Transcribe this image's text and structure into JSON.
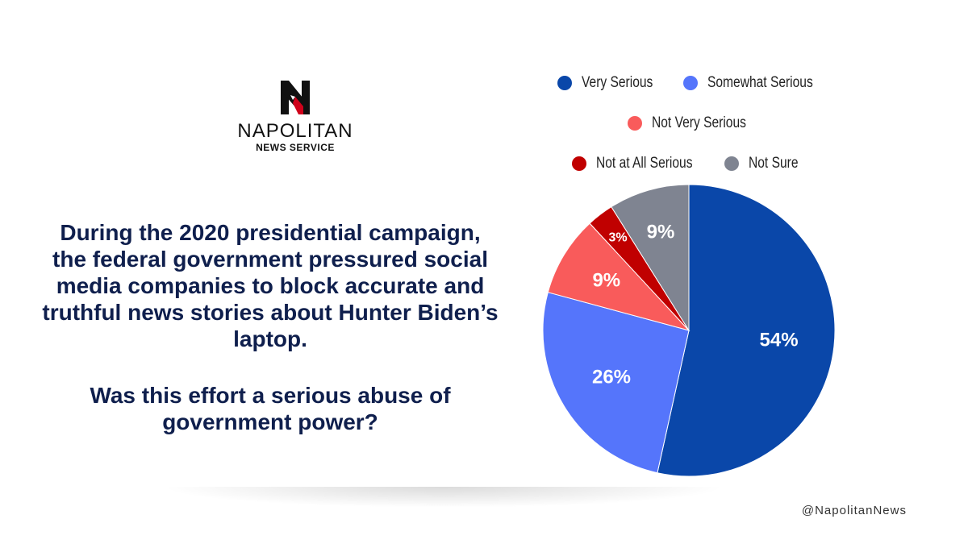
{
  "logo": {
    "name": "NAPOLITAN",
    "subtitle": "NEWS SERVICE"
  },
  "question": {
    "statement": "During the 2020 presidential campaign, the federal government pressured social media companies to block accurate and truthful news stories about Hunter Biden’s laptop.",
    "prompt": "Was this effort a serious abuse of government power?"
  },
  "chart_data": {
    "type": "pie",
    "categories": [
      "Very Serious",
      "Somewhat Serious",
      "Not Very Serious",
      "Not at All Serious",
      "Not Sure"
    ],
    "values": [
      54,
      26,
      9,
      3,
      9
    ],
    "labels": [
      "54%",
      "26%",
      "9%",
      "3%",
      "9%"
    ],
    "colors": [
      "#0a47a9",
      "#5575fb",
      "#f95b5b",
      "#c00000",
      "#7f8491"
    ],
    "legend_position": "top"
  },
  "footer": {
    "handle": "@NapolitanNews"
  }
}
